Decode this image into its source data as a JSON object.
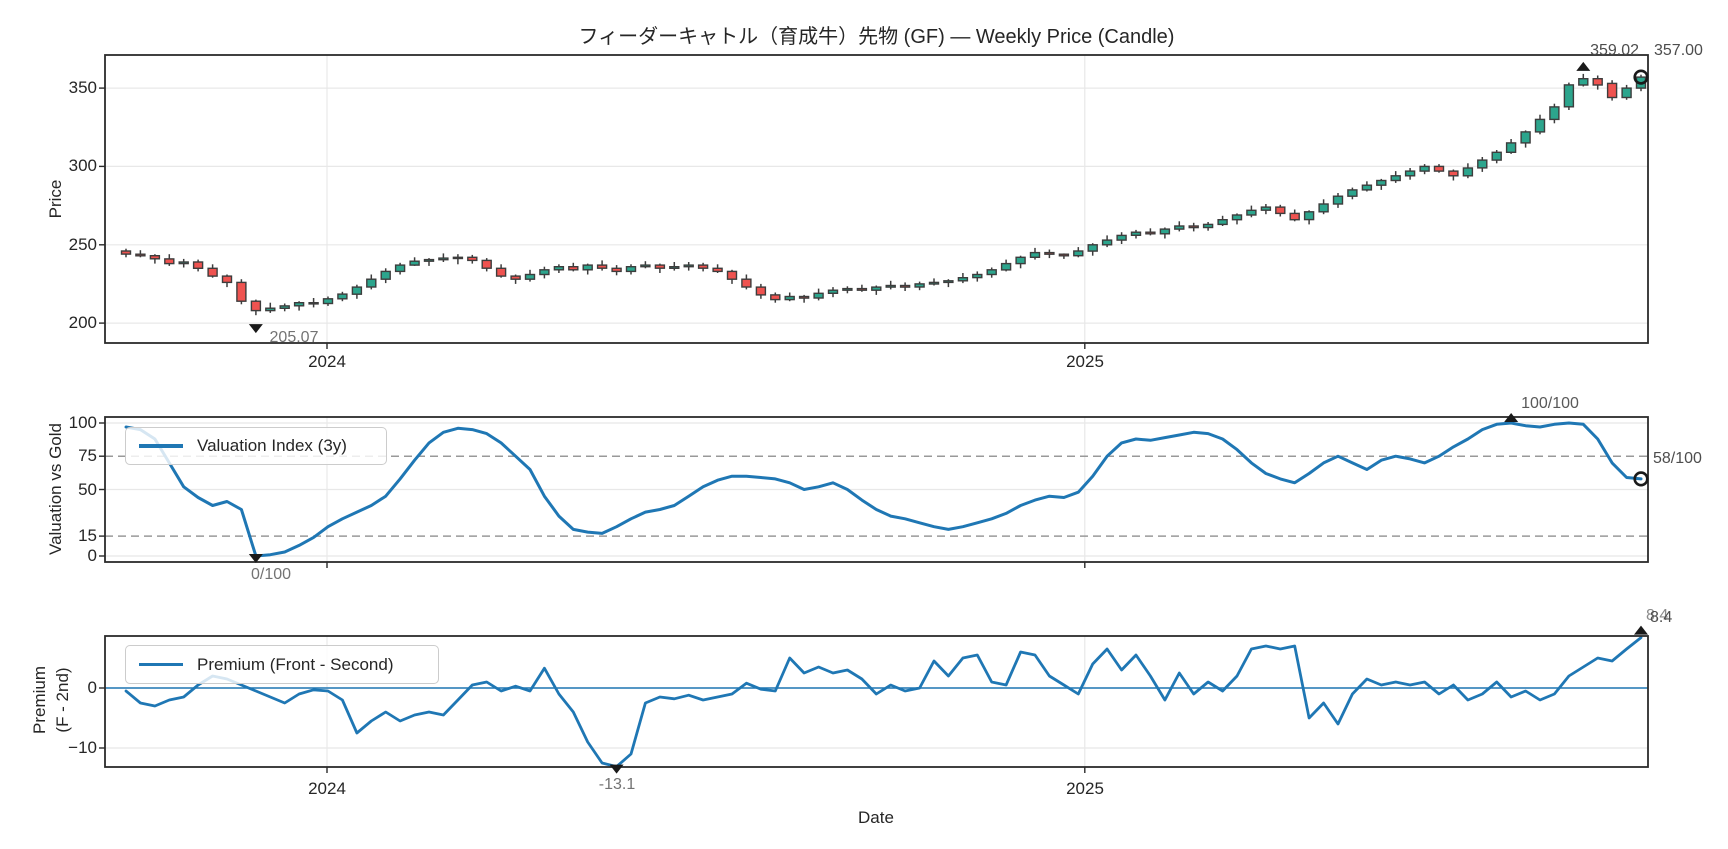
{
  "title": "フィーダーキャトル（育成牛）先物 (GF) — Weekly Price (Candle)",
  "xlabel": "Date",
  "price_panel": {
    "ylabel": "Price",
    "yticks": [
      "350",
      "300",
      "250",
      "200"
    ],
    "xtick_labels": [
      "2024",
      "2025"
    ],
    "annotations": {
      "low": "205.07",
      "peak": "359.02",
      "last": "357.00"
    }
  },
  "valuation_panel": {
    "ylabel": "Valuation vs Gold",
    "legend_label": "Valuation Index (3y)",
    "yticks": [
      "100",
      "75",
      "50",
      "15",
      "0"
    ],
    "annotations": {
      "peak": "100/100",
      "low": "0/100",
      "last": "58/100"
    }
  },
  "premium_panel": {
    "ylabel_line1": "Premium",
    "ylabel_line2": "(F - 2nd)",
    "legend_label": "Premium (Front - Second)",
    "yticks": [
      "0",
      "−10"
    ],
    "xtick_labels": [
      "2024",
      "2025"
    ],
    "annotations": {
      "low": "-13.1",
      "peak": "8.4",
      "last": "8.4"
    }
  },
  "chart_data": {
    "type": "multi-panel",
    "panels": [
      {
        "name": "price",
        "type": "candlestick",
        "title": "フィーダーキャトル（育成牛）先物 (GF) — Weekly Price (Candle)",
        "ylabel": "Price",
        "ylim": [
          187.3,
          371.1
        ],
        "yticks": [
          350,
          300,
          250,
          200
        ],
        "grid": true
      },
      {
        "name": "valuation",
        "type": "line",
        "ylabel": "Valuation vs Gold",
        "legend": "Valuation Index (3y)",
        "ylim": [
          -4.5,
          104.5
        ],
        "yticks": [
          100,
          75,
          50,
          15,
          0
        ],
        "dashed_levels": [
          75,
          15
        ],
        "solid_grid_levels": [
          100,
          50,
          0
        ],
        "grid": true
      },
      {
        "name": "premium",
        "type": "line",
        "ylabel": "Premium (F - 2nd)",
        "legend": "Premium (Front - Second)",
        "ylim": [
          -13.2,
          8.7
        ],
        "yticks": [
          0,
          -10
        ],
        "zero_line": true,
        "grid": true
      }
    ],
    "x_axis": {
      "label": "Date",
      "unit": "week",
      "tick_labels": [
        "2024",
        "2025"
      ],
      "tick_indices": [
        13.93,
        66.45
      ],
      "n_points": 106
    },
    "candles": [
      [
        246,
        247.5,
        242,
        244
      ],
      [
        244,
        246.5,
        242,
        243
      ],
      [
        243,
        244,
        238,
        241
      ],
      [
        241,
        244,
        236.5,
        238
      ],
      [
        238,
        241,
        235.5,
        239
      ],
      [
        239,
        240.5,
        233,
        235
      ],
      [
        235,
        237.5,
        229,
        230
      ],
      [
        230,
        231,
        223,
        226
      ],
      [
        226,
        228,
        212,
        214
      ],
      [
        214,
        215,
        205.07,
        208
      ],
      [
        208,
        213,
        206.5,
        209.5
      ],
      [
        209.5,
        212.5,
        207.5,
        211
      ],
      [
        211,
        214,
        208,
        213
      ],
      [
        213,
        216,
        210,
        212.5
      ],
      [
        212.5,
        217,
        211,
        215.5
      ],
      [
        215.5,
        220,
        214,
        218.5
      ],
      [
        218.5,
        224.5,
        215.5,
        223
      ],
      [
        223,
        231,
        221.5,
        228
      ],
      [
        228,
        235,
        225.5,
        233
      ],
      [
        233,
        238.5,
        231,
        237
      ],
      [
        237,
        242,
        236.5,
        239.5
      ],
      [
        239.5,
        241.5,
        236.5,
        240.5
      ],
      [
        240.5,
        244.5,
        239,
        241.5
      ],
      [
        241.5,
        244,
        237.5,
        242
      ],
      [
        242,
        243.5,
        238,
        240
      ],
      [
        240,
        241.5,
        233,
        235
      ],
      [
        235,
        237.5,
        229,
        230
      ],
      [
        230,
        231,
        225,
        228
      ],
      [
        228,
        234,
        226.5,
        231
      ],
      [
        231,
        236,
        228.5,
        234
      ],
      [
        234,
        237.5,
        232,
        236
      ],
      [
        236,
        238.5,
        233,
        234
      ],
      [
        234,
        238,
        231,
        237
      ],
      [
        237,
        240,
        233.5,
        235
      ],
      [
        235,
        237,
        230.5,
        233
      ],
      [
        233,
        237.5,
        231,
        236
      ],
      [
        236,
        239.5,
        235,
        237
      ],
      [
        237,
        238,
        232,
        235
      ],
      [
        235,
        239,
        233.5,
        236
      ],
      [
        236,
        239,
        233.5,
        237
      ],
      [
        237,
        238.5,
        233,
        235
      ],
      [
        235,
        237.5,
        232,
        233
      ],
      [
        233,
        234,
        225,
        228
      ],
      [
        228,
        231,
        221.5,
        223
      ],
      [
        223,
        225,
        215.5,
        218
      ],
      [
        218,
        219.5,
        213,
        215
      ],
      [
        215,
        219.5,
        214,
        217
      ],
      [
        217,
        218,
        213,
        216
      ],
      [
        216,
        222,
        214.5,
        219
      ],
      [
        219,
        223,
        216.5,
        221
      ],
      [
        221,
        223.5,
        219,
        222
      ],
      [
        222,
        224.5,
        220,
        221
      ],
      [
        221,
        224,
        218,
        223
      ],
      [
        223,
        227,
        221.5,
        224
      ],
      [
        224,
        226,
        220.5,
        223
      ],
      [
        223,
        226.5,
        221,
        225
      ],
      [
        225,
        228.5,
        224,
        226
      ],
      [
        226,
        228,
        223,
        227
      ],
      [
        227,
        232,
        225.5,
        229
      ],
      [
        229,
        233,
        226.5,
        231
      ],
      [
        231,
        235.5,
        229,
        234
      ],
      [
        234,
        240.5,
        233,
        238
      ],
      [
        238,
        243,
        235,
        242
      ],
      [
        242,
        248,
        240.5,
        245
      ],
      [
        245,
        247,
        241.5,
        244
      ],
      [
        244,
        244.5,
        241,
        243
      ],
      [
        243,
        248.5,
        242,
        246
      ],
      [
        246,
        251,
        243,
        250
      ],
      [
        250,
        256,
        248.5,
        253
      ],
      [
        253,
        258,
        250.5,
        256
      ],
      [
        256,
        259.5,
        254,
        258
      ],
      [
        258,
        260.5,
        256,
        257
      ],
      [
        257,
        261,
        254,
        260
      ],
      [
        260,
        265,
        258.5,
        262
      ],
      [
        262,
        264,
        258.5,
        261
      ],
      [
        261,
        264.5,
        259,
        263
      ],
      [
        263,
        268.5,
        262,
        266
      ],
      [
        266,
        270,
        263,
        269
      ],
      [
        269,
        275,
        267.5,
        272
      ],
      [
        272,
        276,
        269.5,
        274
      ],
      [
        274,
        275.5,
        268,
        270
      ],
      [
        270,
        272.5,
        265,
        266
      ],
      [
        266,
        272,
        263,
        271
      ],
      [
        271,
        279,
        269.5,
        276
      ],
      [
        276,
        283,
        273.5,
        281
      ],
      [
        281,
        286.5,
        279,
        285
      ],
      [
        285,
        290.5,
        284,
        288
      ],
      [
        288,
        292,
        285,
        291
      ],
      [
        291,
        297,
        289.5,
        294
      ],
      [
        294,
        299,
        291.5,
        297
      ],
      [
        297,
        301.5,
        295,
        300
      ],
      [
        300,
        301.5,
        296,
        297
      ],
      [
        297,
        298,
        291,
        294
      ],
      [
        294,
        302,
        292.5,
        299
      ],
      [
        299,
        306,
        296.5,
        304
      ],
      [
        304,
        310.5,
        302,
        309
      ],
      [
        309,
        317.5,
        308,
        315
      ],
      [
        315,
        323,
        312,
        322
      ],
      [
        322,
        333,
        320.5,
        330
      ],
      [
        330,
        340,
        327.5,
        338
      ],
      [
        338,
        353.5,
        336,
        352
      ],
      [
        352,
        359.02,
        351,
        356
      ],
      [
        356,
        358,
        349,
        352
      ],
      [
        353,
        355,
        342,
        344
      ],
      [
        344,
        352,
        342.5,
        350
      ],
      [
        350,
        358.5,
        348,
        357
      ]
    ],
    "valuation": [
      97,
      95,
      88,
      70,
      52,
      44,
      38,
      41,
      35,
      0,
      1,
      3,
      8,
      14,
      22,
      28,
      33,
      38,
      45,
      58,
      72,
      85,
      93,
      96,
      95,
      92,
      85,
      75,
      65,
      45,
      30,
      20,
      18,
      17,
      22,
      28,
      33,
      35,
      38,
      45,
      52,
      57,
      60,
      60,
      59,
      58,
      55,
      50,
      52,
      55,
      50,
      42,
      35,
      30,
      28,
      25,
      22,
      20,
      22,
      25,
      28,
      32,
      38,
      42,
      45,
      44,
      48,
      60,
      75,
      85,
      88,
      87,
      89,
      91,
      93,
      92,
      88,
      80,
      70,
      62,
      58,
      55,
      62,
      70,
      75,
      70,
      65,
      72,
      75,
      73,
      70,
      75,
      82,
      88,
      95,
      99,
      100,
      98,
      97,
      99,
      100,
      99,
      88,
      70,
      59,
      58
    ],
    "premium": [
      -0.5,
      -2.5,
      -3,
      -2,
      -1.5,
      0.5,
      2,
      1.5,
      0.5,
      -0.5,
      -1.5,
      -2.5,
      -1,
      -0.3,
      -0.5,
      -2,
      -7.5,
      -5.5,
      -4,
      -5.5,
      -4.5,
      -4,
      -4.5,
      -2,
      0.5,
      1,
      -0.5,
      0.3,
      -0.5,
      3.3,
      -1,
      -4,
      -9,
      -12.5,
      -13.1,
      -11,
      -2.5,
      -1.5,
      -1.8,
      -1.2,
      -2,
      -1.5,
      -1,
      0.8,
      -0.2,
      -0.5,
      5,
      2.5,
      3.5,
      2.5,
      3,
      1.5,
      -1,
      0.5,
      -0.5,
      0,
      4.5,
      2,
      5,
      5.5,
      1,
      0.5,
      6,
      5.5,
      2,
      0.5,
      -1,
      4,
      6.5,
      3,
      5.5,
      2,
      -2,
      2.5,
      -1,
      1,
      -0.5,
      2,
      6.5,
      7,
      6.5,
      7,
      -5,
      -2.5,
      -6,
      -1,
      1.5,
      0.5,
      1,
      0.5,
      1,
      -1,
      0.5,
      -2,
      -1,
      1,
      -1.5,
      -0.5,
      -2,
      -1,
      2,
      3.5,
      5,
      4.5,
      6.5,
      8.4
    ],
    "markers": {
      "price": [
        {
          "shape": "triangle-down",
          "index": 9,
          "value": 205.07,
          "label": "205.07"
        },
        {
          "shape": "triangle-up",
          "index": 101,
          "value": 359.02,
          "label": "359.02"
        },
        {
          "shape": "open-circle",
          "index": 105,
          "value": 357.0,
          "label": "357.00"
        }
      ],
      "valuation": [
        {
          "shape": "triangle-down",
          "index": 9,
          "value": 0,
          "label": "0/100"
        },
        {
          "shape": "triangle-up",
          "index": 96,
          "value": 100,
          "label": "100/100"
        },
        {
          "shape": "open-circle",
          "index": 105,
          "value": 58,
          "label": "58/100"
        }
      ],
      "premium": [
        {
          "shape": "triangle-down",
          "index": 34,
          "value": -13.1,
          "label": "-13.1"
        },
        {
          "shape": "triangle-up",
          "index": 105,
          "value": 8.4,
          "label": "8.4"
        }
      ]
    },
    "colors": {
      "up": "#2CA58D",
      "down": "#EF5350",
      "edge": "#3D3D3D",
      "line": "#1F77B4",
      "marker": "#1A1A1A",
      "grid": "#E8E8E8",
      "dashed": "#999999",
      "spine": "#2B2B2B"
    }
  }
}
